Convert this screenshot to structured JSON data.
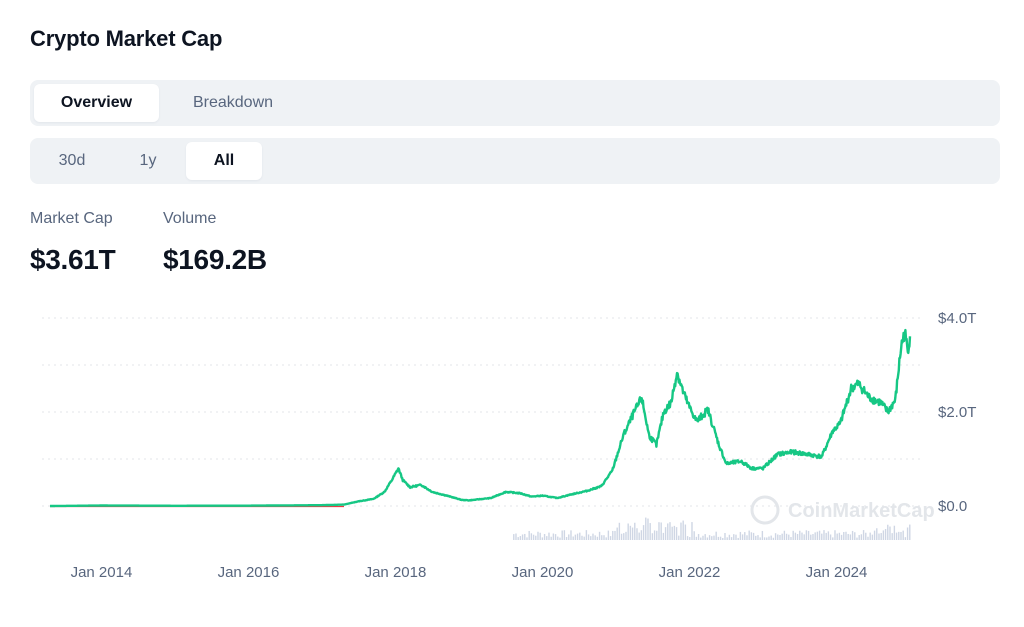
{
  "title": "Crypto Market Cap",
  "tabs": [
    {
      "label": "Overview",
      "active": true
    },
    {
      "label": "Breakdown",
      "active": false
    }
  ],
  "ranges": [
    {
      "label": "30d",
      "active": false
    },
    {
      "label": "1y",
      "active": false
    },
    {
      "label": "All",
      "active": true
    }
  ],
  "stats": {
    "market_cap_label": "Market Cap",
    "market_cap_value": "$3.61T",
    "volume_label": "Volume",
    "volume_value": "$169.2B"
  },
  "watermark": "CoinMarketCap",
  "colors": {
    "line": "#16c784",
    "volume": "#cfd6e4",
    "grid": "#e3e6ea",
    "text_muted": "#58667e",
    "tab_bg": "#eff2f5"
  },
  "chart_data": {
    "type": "line",
    "title": "",
    "xlabel": "",
    "ylabel": "",
    "xlim": [
      2013.3,
      2025.0
    ],
    "ylim": [
      0,
      4.0
    ],
    "y_unit": "T",
    "x_ticks": [
      {
        "value": 2014.0,
        "label": "Jan 2014"
      },
      {
        "value": 2016.0,
        "label": "Jan 2016"
      },
      {
        "value": 2018.0,
        "label": "Jan 2018"
      },
      {
        "value": 2020.0,
        "label": "Jan 2020"
      },
      {
        "value": 2022.0,
        "label": "Jan 2022"
      },
      {
        "value": 2024.0,
        "label": "Jan 2024"
      }
    ],
    "y_ticks": [
      {
        "value": 4.0,
        "label": "$4.0T"
      },
      {
        "value": 2.0,
        "label": "$2.0T"
      },
      {
        "value": 0.0,
        "label": "$0.0"
      }
    ],
    "grid": "horizontal-dotted",
    "series": [
      {
        "values": [
          [
            2013.3,
            0.0
          ],
          [
            2014.0,
            0.01
          ],
          [
            2015.0,
            0.005
          ],
          [
            2016.0,
            0.007
          ],
          [
            2017.0,
            0.018
          ],
          [
            2017.3,
            0.03
          ],
          [
            2017.5,
            0.1
          ],
          [
            2017.7,
            0.15
          ],
          [
            2017.85,
            0.3
          ],
          [
            2017.95,
            0.55
          ],
          [
            2018.04,
            0.8
          ],
          [
            2018.1,
            0.55
          ],
          [
            2018.2,
            0.4
          ],
          [
            2018.35,
            0.45
          ],
          [
            2018.5,
            0.3
          ],
          [
            2018.7,
            0.22
          ],
          [
            2018.9,
            0.13
          ],
          [
            2019.0,
            0.12
          ],
          [
            2019.3,
            0.17
          ],
          [
            2019.5,
            0.3
          ],
          [
            2019.7,
            0.27
          ],
          [
            2019.85,
            0.2
          ],
          [
            2020.0,
            0.22
          ],
          [
            2020.2,
            0.17
          ],
          [
            2020.4,
            0.25
          ],
          [
            2020.6,
            0.32
          ],
          [
            2020.8,
            0.42
          ],
          [
            2020.95,
            0.75
          ],
          [
            2021.1,
            1.5
          ],
          [
            2021.25,
            2.0
          ],
          [
            2021.35,
            2.3
          ],
          [
            2021.45,
            1.5
          ],
          [
            2021.55,
            1.3
          ],
          [
            2021.65,
            2.0
          ],
          [
            2021.75,
            2.2
          ],
          [
            2021.83,
            2.85
          ],
          [
            2021.92,
            2.4
          ],
          [
            2022.0,
            2.1
          ],
          [
            2022.1,
            1.8
          ],
          [
            2022.25,
            2.05
          ],
          [
            2022.4,
            1.3
          ],
          [
            2022.5,
            0.9
          ],
          [
            2022.7,
            0.95
          ],
          [
            2022.85,
            0.8
          ],
          [
            2023.0,
            0.8
          ],
          [
            2023.2,
            1.1
          ],
          [
            2023.4,
            1.15
          ],
          [
            2023.6,
            1.1
          ],
          [
            2023.8,
            1.05
          ],
          [
            2023.95,
            1.6
          ],
          [
            2024.05,
            1.75
          ],
          [
            2024.2,
            2.5
          ],
          [
            2024.3,
            2.6
          ],
          [
            2024.45,
            2.3
          ],
          [
            2024.6,
            2.2
          ],
          [
            2024.7,
            2.0
          ],
          [
            2024.8,
            2.25
          ],
          [
            2024.88,
            3.4
          ],
          [
            2024.93,
            3.7
          ],
          [
            2024.97,
            3.3
          ],
          [
            2025.0,
            3.61
          ]
        ]
      }
    ],
    "volume_bars": "small grey bars along the bottom (2019.5–2025)"
  }
}
